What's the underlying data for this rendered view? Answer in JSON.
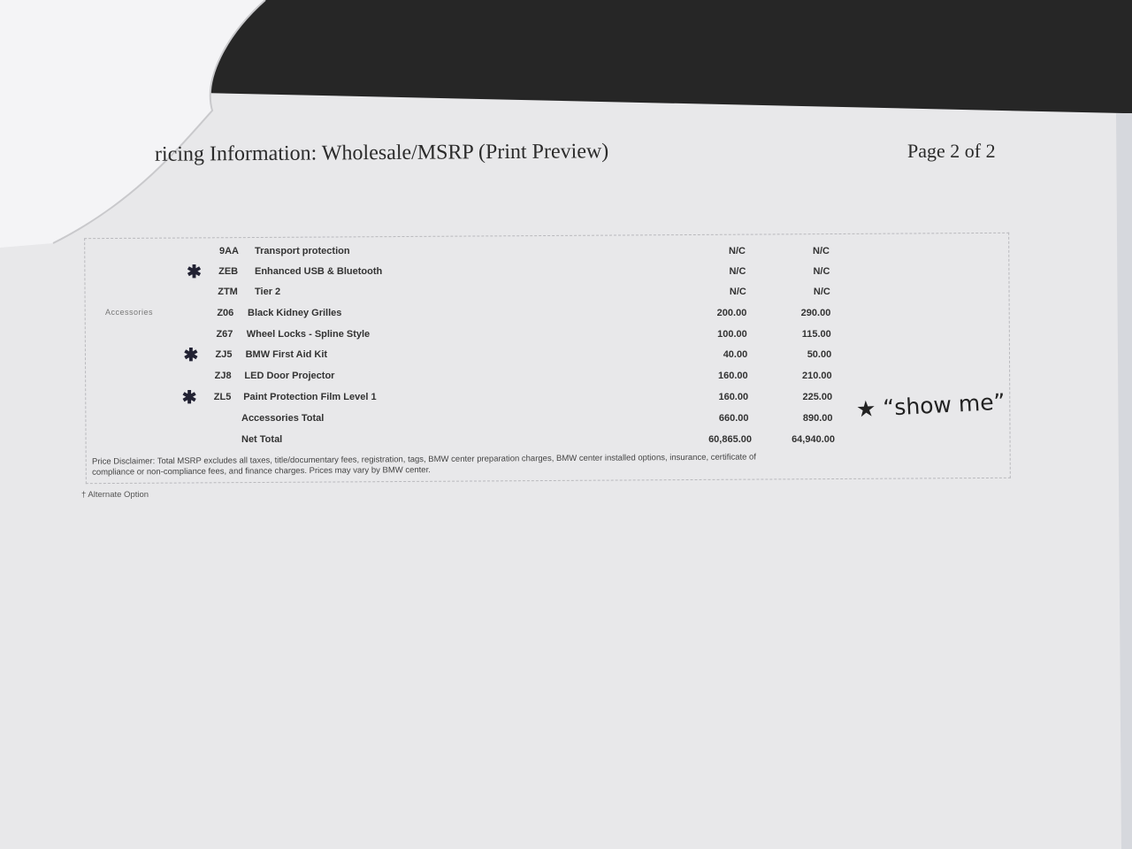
{
  "header": {
    "title": "ricing Information: Wholesale/MSRP (Print Preview)",
    "page": "Page 2 of 2"
  },
  "section_label": "Accessories",
  "rows": [
    {
      "code": "9AA",
      "desc": "Transport protection",
      "wholesale": "N/C",
      "msrp": "N/C",
      "starred": false
    },
    {
      "code": "ZEB",
      "desc": "Enhanced USB & Bluetooth",
      "wholesale": "N/C",
      "msrp": "N/C",
      "starred": true
    },
    {
      "code": "ZTM",
      "desc": "Tier 2",
      "wholesale": "N/C",
      "msrp": "N/C",
      "starred": false
    },
    {
      "code": "Z06",
      "desc": "Black Kidney Grilles",
      "wholesale": "200.00",
      "msrp": "290.00",
      "starred": false
    },
    {
      "code": "Z67",
      "desc": "Wheel Locks - Spline Style",
      "wholesale": "100.00",
      "msrp": "115.00",
      "starred": false
    },
    {
      "code": "ZJ5",
      "desc": "BMW First Aid Kit",
      "wholesale": "40.00",
      "msrp": "50.00",
      "starred": true
    },
    {
      "code": "ZJ8",
      "desc": "LED Door Projector",
      "wholesale": "160.00",
      "msrp": "210.00",
      "starred": false
    },
    {
      "code": "ZL5",
      "desc": "Paint Protection Film Level 1",
      "wholesale": "160.00",
      "msrp": "225.00",
      "starred": true
    },
    {
      "code": "",
      "desc": "Accessories Total",
      "wholesale": "660.00",
      "msrp": "890.00",
      "starred": false
    },
    {
      "code": "",
      "desc": "Net Total",
      "wholesale": "60,865.00",
      "msrp": "64,940.00",
      "starred": false
    }
  ],
  "handwritten_note": "★ “show me”",
  "disclaimer": "Price Disclaimer: Total MSRP excludes all taxes, title/documentary fees, registration, tags, BMW center preparation charges, BMW center installed options, insurance, certificate of compliance or non-compliance fees, and finance charges. Prices may vary by BMW center.",
  "footnote": "† Alternate Option",
  "colors": {
    "paper": "#e9e9eb",
    "background": "#262626",
    "ink": "#333333"
  }
}
